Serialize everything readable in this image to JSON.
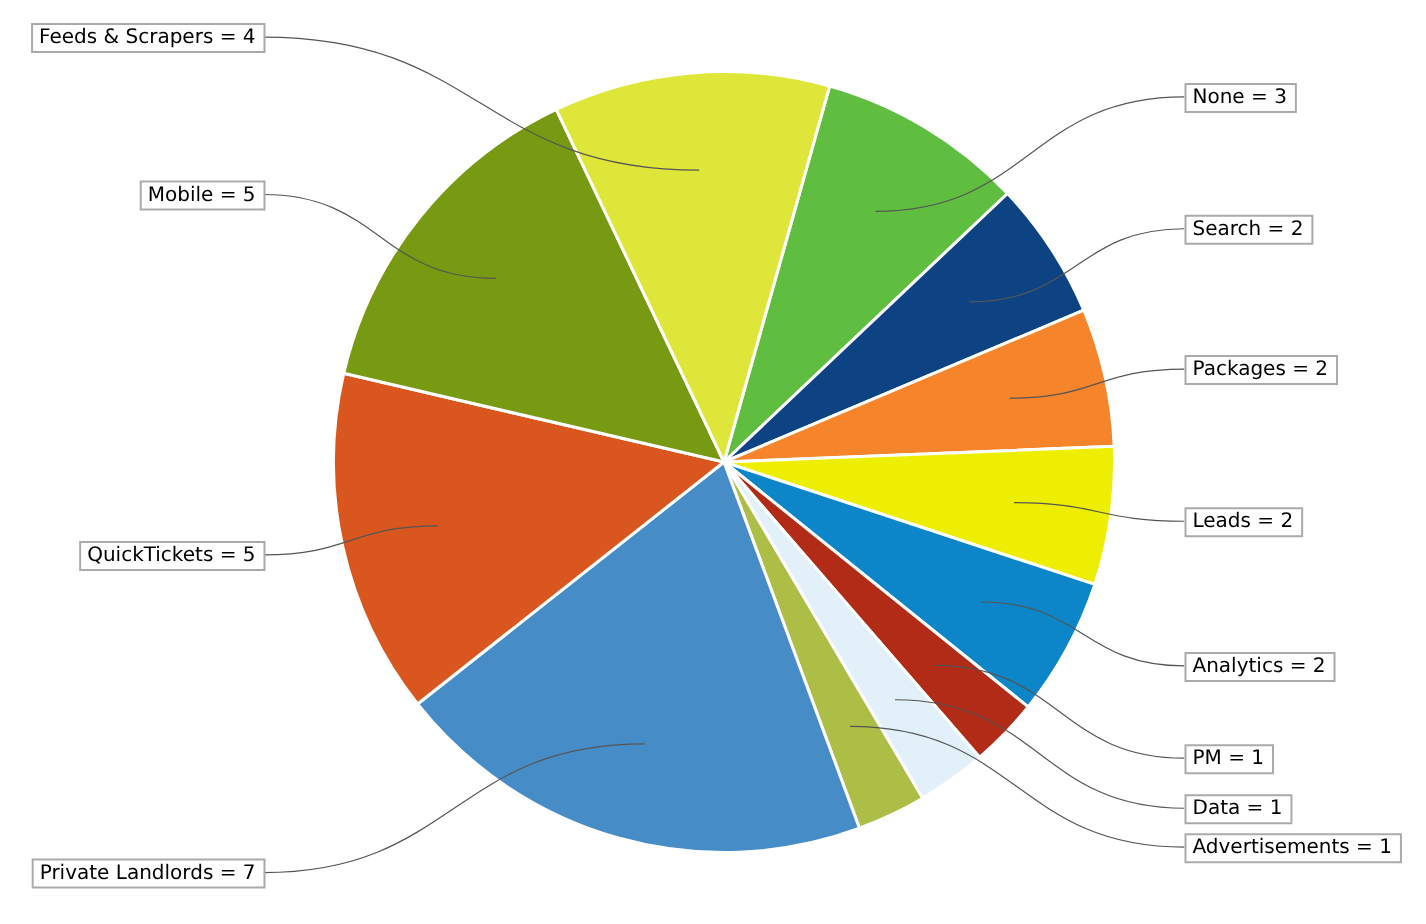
{
  "chart_data": {
    "type": "pie",
    "categories": [
      "None",
      "Search",
      "Packages",
      "Leads",
      "Analytics",
      "PM",
      "Data",
      "Advertisements",
      "Private Landlords",
      "QuickTickets",
      "Mobile",
      "Feeds & Scrapers"
    ],
    "values": [
      3,
      2,
      2,
      2,
      2,
      1,
      1,
      1,
      7,
      5,
      5,
      4
    ],
    "colors": [
      "#5fbe40",
      "#0d4383",
      "#f5842a",
      "#eeee00",
      "#0c85c9",
      "#b12b17",
      "#e2f0f9",
      "#adbe46",
      "#468dc8",
      "#d9561e",
      "#779a12",
      "#dfe63a"
    ],
    "value_labels": [
      "= 3",
      "= 2",
      "= 2",
      "= 2",
      "= 2",
      "= 1",
      "= 1",
      "= 1",
      "= 7",
      "= 5",
      "= 5",
      "= 4"
    ],
    "legend": false
  }
}
